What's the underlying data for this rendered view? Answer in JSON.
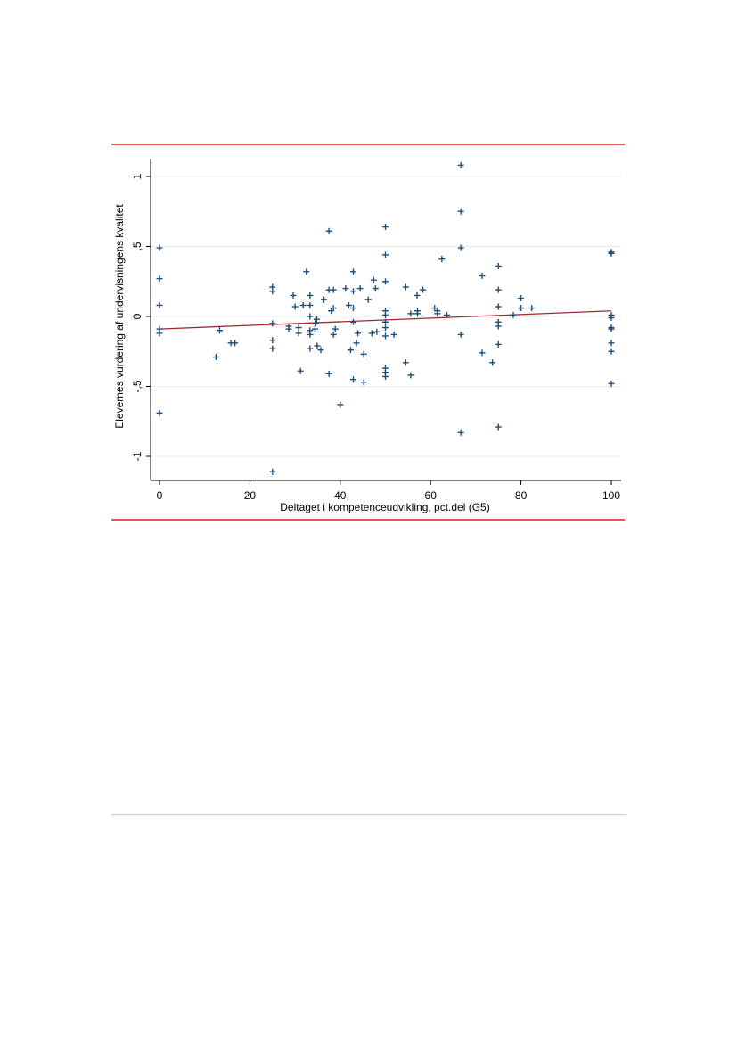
{
  "chart_data": {
    "type": "scatter",
    "xlabel": "Deltaget i kompetenceudvikling, pct.del (G5)",
    "ylabel": "Elevernes vurdering af undervisningens kvalitet",
    "xlim": [
      0,
      100
    ],
    "ylim": [
      -1.15,
      1.13
    ],
    "x_ticks": [
      0,
      20,
      40,
      60,
      80,
      100
    ],
    "x_tick_labels": [
      "0",
      "20",
      "40",
      "60",
      "80",
      "100"
    ],
    "y_ticks": [
      -1,
      -0.5,
      0,
      0.5,
      1
    ],
    "y_tick_labels": [
      "-1",
      "-,5",
      "0",
      ",5",
      "1"
    ],
    "grid": true,
    "marker": "+",
    "colors": {
      "points": "#1f4e79",
      "fit_line": "#a0282d",
      "grid": "#e6eef2",
      "rule": "#e8583c"
    },
    "fit_line": {
      "x": [
        0,
        100
      ],
      "y": [
        -0.09,
        0.04
      ]
    },
    "points": [
      [
        0,
        0.49
      ],
      [
        0,
        0.27
      ],
      [
        0,
        0.08
      ],
      [
        0,
        -0.09
      ],
      [
        0,
        -0.12
      ],
      [
        0,
        -0.69
      ],
      [
        12.5,
        -0.29
      ],
      [
        13.3,
        -0.1
      ],
      [
        15.8,
        -0.19
      ],
      [
        16.7,
        -0.19
      ],
      [
        25,
        0.21
      ],
      [
        25,
        0.18
      ],
      [
        25,
        -0.05
      ],
      [
        25,
        -0.17
      ],
      [
        25,
        -0.23
      ],
      [
        25,
        -1.11
      ],
      [
        28.6,
        -0.07
      ],
      [
        28.6,
        -0.09
      ],
      [
        29.6,
        0.15
      ],
      [
        30,
        0.07
      ],
      [
        30.8,
        -0.08
      ],
      [
        30.8,
        -0.12
      ],
      [
        31.2,
        -0.39
      ],
      [
        31.8,
        0.08
      ],
      [
        32.5,
        0.32
      ],
      [
        33.3,
        0.15
      ],
      [
        33.3,
        0.08
      ],
      [
        33.3,
        0
      ],
      [
        33.3,
        -0.1
      ],
      [
        33.3,
        -0.13
      ],
      [
        33.3,
        -0.23
      ],
      [
        34.4,
        -0.09
      ],
      [
        34.6,
        -0.05
      ],
      [
        34.8,
        -0.02
      ],
      [
        34.9,
        -0.21
      ],
      [
        35.7,
        -0.24
      ],
      [
        36.4,
        0.12
      ],
      [
        37.5,
        0.61
      ],
      [
        37.5,
        0.19
      ],
      [
        37.5,
        -0.41
      ],
      [
        38,
        0.04
      ],
      [
        38.5,
        0.19
      ],
      [
        38.5,
        -0.13
      ],
      [
        38.5,
        0.06
      ],
      [
        38.9,
        -0.09
      ],
      [
        40,
        -0.63
      ],
      [
        41.2,
        0.2
      ],
      [
        41.9,
        0.08
      ],
      [
        42.3,
        -0.24
      ],
      [
        42.9,
        0.32
      ],
      [
        42.9,
        0.18
      ],
      [
        42.9,
        0.06
      ],
      [
        42.9,
        -0.04
      ],
      [
        42.9,
        -0.45
      ],
      [
        43.6,
        -0.19
      ],
      [
        43.9,
        -0.12
      ],
      [
        44.4,
        0.2
      ],
      [
        45.2,
        -0.27
      ],
      [
        45.2,
        -0.47
      ],
      [
        46.2,
        0.12
      ],
      [
        47,
        -0.12
      ],
      [
        47.4,
        0.26
      ],
      [
        47.8,
        0.2
      ],
      [
        48.1,
        -0.11
      ],
      [
        50,
        0.64
      ],
      [
        50,
        0.44
      ],
      [
        50,
        0.25
      ],
      [
        50,
        0.04
      ],
      [
        50,
        0.01
      ],
      [
        50,
        -0.04
      ],
      [
        50,
        -0.08
      ],
      [
        50,
        -0.14
      ],
      [
        50,
        -0.37
      ],
      [
        50,
        -0.4
      ],
      [
        50,
        -0.43
      ],
      [
        51.9,
        -0.13
      ],
      [
        54.5,
        0.21
      ],
      [
        54.5,
        -0.33
      ],
      [
        55.6,
        -0.42
      ],
      [
        55.6,
        0.02
      ],
      [
        57,
        0.15
      ],
      [
        57.1,
        0.04
      ],
      [
        57.1,
        0.02
      ],
      [
        58.3,
        0.19
      ],
      [
        60.9,
        0.06
      ],
      [
        61.5,
        0.04
      ],
      [
        61.5,
        0.02
      ],
      [
        62.5,
        0.41
      ],
      [
        63.6,
        0.01
      ],
      [
        66.7,
        1.08
      ],
      [
        66.7,
        0.75
      ],
      [
        66.7,
        0.49
      ],
      [
        66.7,
        -0.13
      ],
      [
        66.7,
        -0.83
      ],
      [
        71.4,
        0.29
      ],
      [
        71.4,
        -0.26
      ],
      [
        73.7,
        -0.33
      ],
      [
        75,
        0.36
      ],
      [
        75,
        0.19
      ],
      [
        75,
        0.07
      ],
      [
        75,
        -0.04
      ],
      [
        75,
        -0.07
      ],
      [
        75,
        -0.2
      ],
      [
        75,
        -0.79
      ],
      [
        78.3,
        0.01
      ],
      [
        80,
        0.13
      ],
      [
        80,
        0.06
      ],
      [
        82.4,
        0.06
      ],
      [
        100,
        0.46
      ],
      [
        100,
        0.45
      ],
      [
        100,
        0.01
      ],
      [
        100,
        -0.01
      ],
      [
        100,
        -0.08
      ],
      [
        100,
        -0.09
      ],
      [
        100,
        -0.19
      ],
      [
        100,
        -0.25
      ],
      [
        100,
        -0.48
      ]
    ]
  }
}
